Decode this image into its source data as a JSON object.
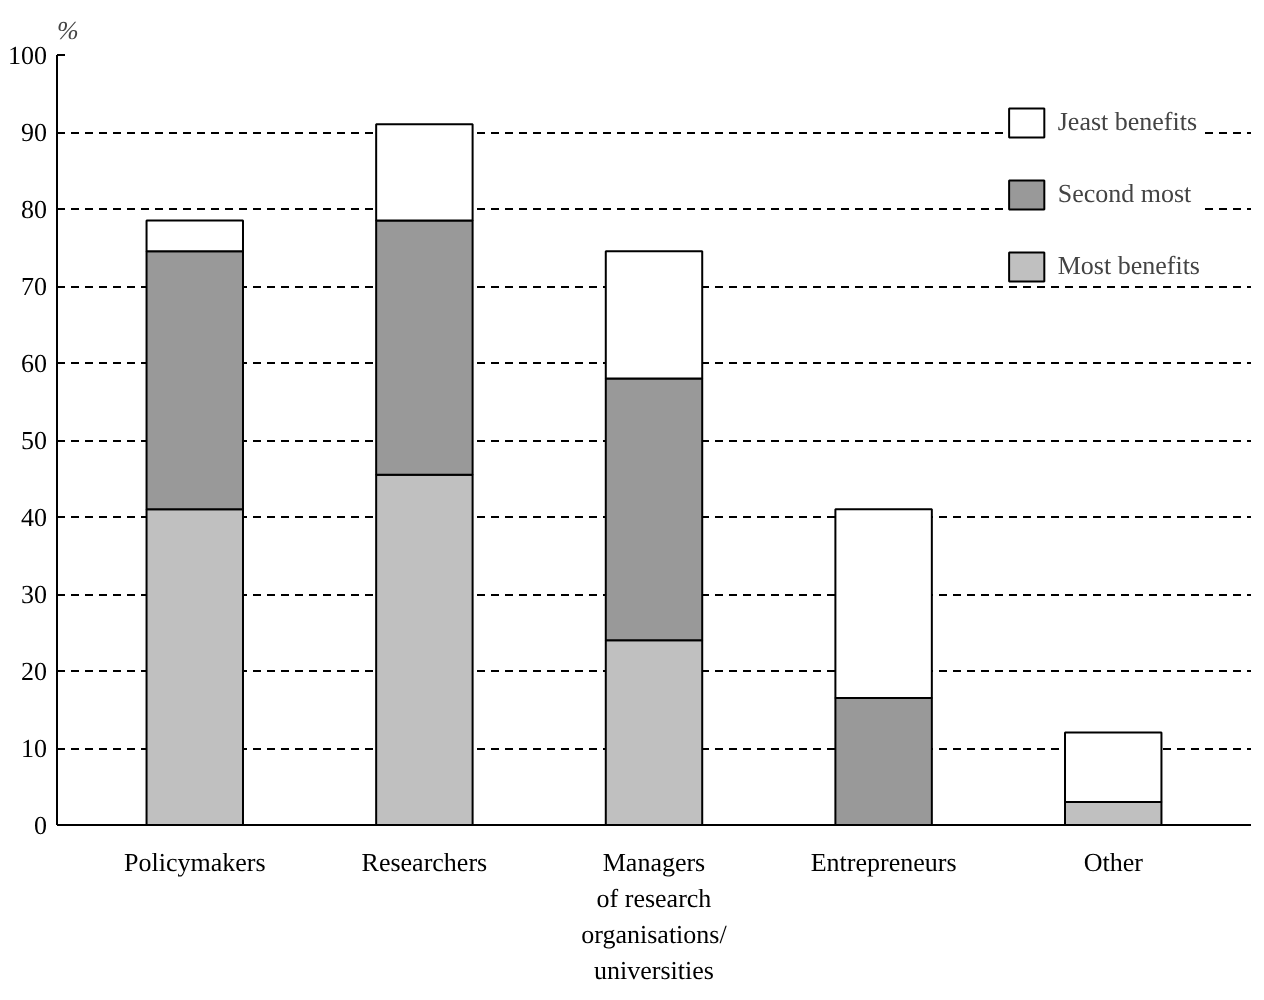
{
  "chart_data": {
    "type": "bar",
    "stacked": true,
    "ylabel": "%",
    "categories": [
      "Policymakers",
      "Researchers",
      "Managers\nof research\norganisations/\nuniversities",
      "Entrepreneurs",
      "Other"
    ],
    "series": [
      {
        "name": "Most benefits",
        "color": "#c0c0c0",
        "values": [
          41,
          45.5,
          24,
          0,
          3
        ]
      },
      {
        "name": "Second most",
        "color": "#999999",
        "values": [
          33.5,
          33,
          34,
          16.5,
          0
        ]
      },
      {
        "name": "Jeast benefits",
        "color": "#ffffff",
        "values": [
          4,
          12.5,
          16.5,
          24.5,
          9
        ]
      }
    ],
    "ylim": [
      0,
      100
    ],
    "yticks": [
      0,
      10,
      20,
      30,
      40,
      50,
      60,
      70,
      80,
      90,
      100
    ],
    "grid": "y",
    "legend": "top right"
  }
}
